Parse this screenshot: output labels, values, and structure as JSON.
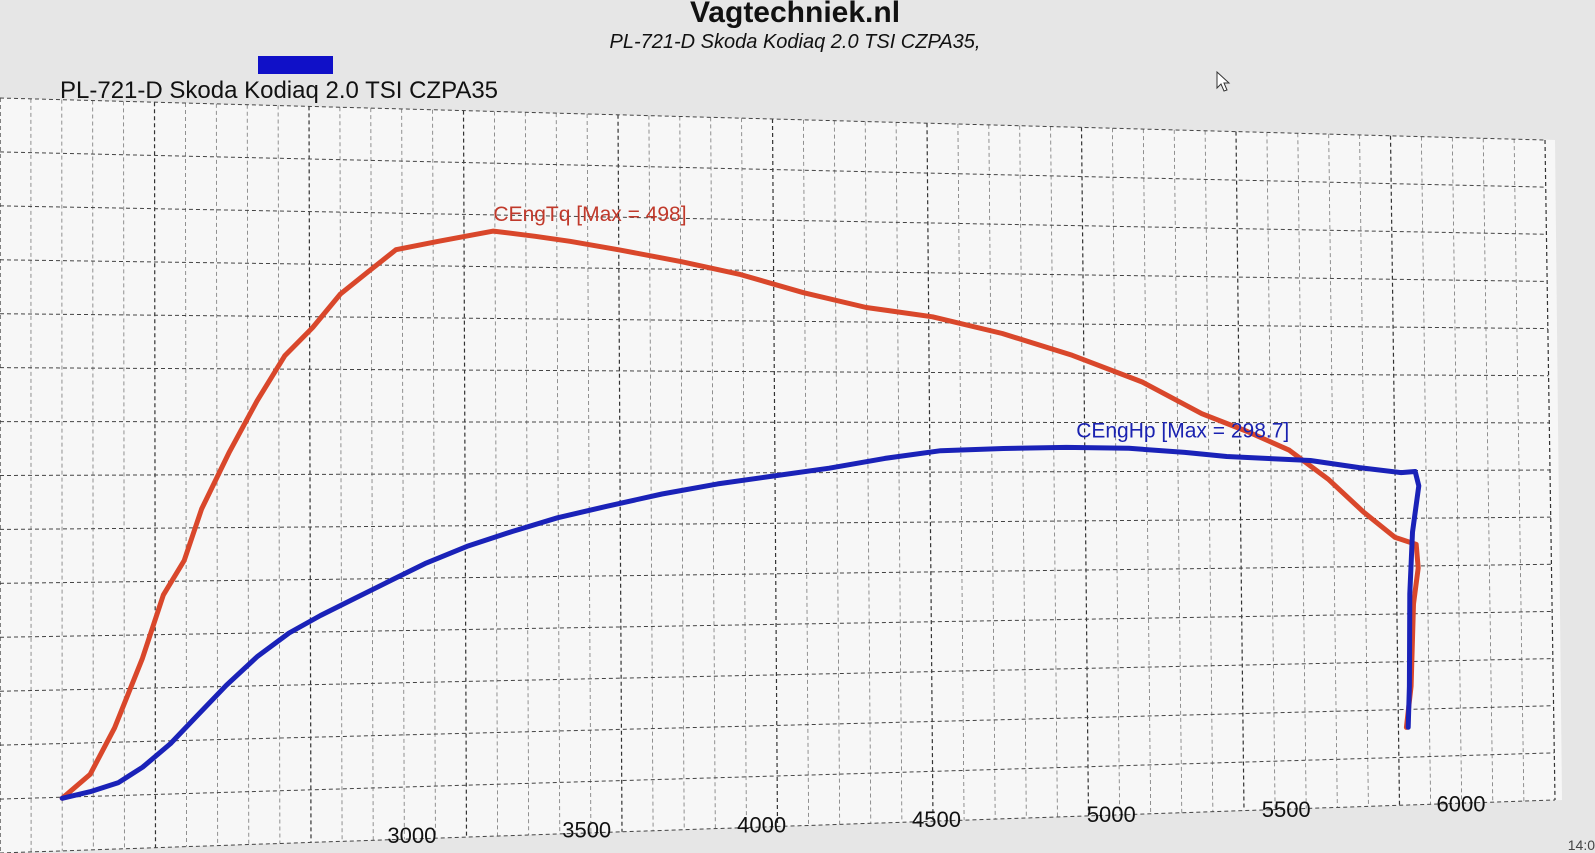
{
  "header": {
    "site_title": "Vagtechniek.nl",
    "subtitle": "PL-721-D Skoda Kodiaq 2.0 TSI CZPA35,",
    "legend_label": "PL-721-D Skoda Kodiaq 2.0 TSI CZPA35",
    "legend_color": "#1010c8",
    "clock": "14:0"
  },
  "chart_data": {
    "type": "line",
    "x_axis": {
      "ticks": [
        3000,
        3500,
        4000,
        4500,
        5000,
        5500,
        6000
      ],
      "tick_labels": [
        "3000",
        "3500",
        "4000",
        "4500",
        "5000",
        "5500",
        "6000"
      ],
      "range": [
        2000,
        6200
      ]
    },
    "y_axis": {
      "range": [
        0,
        560
      ]
    },
    "grid": true,
    "series": [
      {
        "name": "CEngTq",
        "annotation": "CEngTq [Max = 498]",
        "max": 498,
        "color": "#d9472b",
        "points": [
          [
            2000,
            0
          ],
          [
            2080,
            20
          ],
          [
            2150,
            60
          ],
          [
            2230,
            120
          ],
          [
            2290,
            175
          ],
          [
            2350,
            205
          ],
          [
            2400,
            250
          ],
          [
            2480,
            300
          ],
          [
            2560,
            345
          ],
          [
            2640,
            385
          ],
          [
            2720,
            410
          ],
          [
            2800,
            440
          ],
          [
            2880,
            460
          ],
          [
            2960,
            480
          ],
          [
            3080,
            488
          ],
          [
            3240,
            498
          ],
          [
            3360,
            494
          ],
          [
            3460,
            490
          ],
          [
            3600,
            483
          ],
          [
            3780,
            473
          ],
          [
            3950,
            462
          ],
          [
            4130,
            446
          ],
          [
            4310,
            433
          ],
          [
            4500,
            425
          ],
          [
            4700,
            410
          ],
          [
            4900,
            390
          ],
          [
            5100,
            365
          ],
          [
            5270,
            335
          ],
          [
            5400,
            318
          ],
          [
            5520,
            300
          ],
          [
            5630,
            272
          ],
          [
            5730,
            240
          ],
          [
            5820,
            215
          ],
          [
            5880,
            208
          ],
          [
            5885,
            185
          ],
          [
            5870,
            150
          ],
          [
            5860,
            70
          ],
          [
            5845,
            30
          ]
        ]
      },
      {
        "name": "CEngHp",
        "annotation": "CEngHp [Max = 298.7]",
        "max": 298.7,
        "color": "#1a22b8",
        "points": [
          [
            2000,
            0
          ],
          [
            2080,
            5
          ],
          [
            2160,
            12
          ],
          [
            2230,
            25
          ],
          [
            2310,
            45
          ],
          [
            2390,
            70
          ],
          [
            2470,
            95
          ],
          [
            2560,
            120
          ],
          [
            2650,
            140
          ],
          [
            2740,
            155
          ],
          [
            2840,
            170
          ],
          [
            2940,
            185
          ],
          [
            3040,
            200
          ],
          [
            3160,
            215
          ],
          [
            3290,
            228
          ],
          [
            3420,
            240
          ],
          [
            3560,
            250
          ],
          [
            3720,
            261
          ],
          [
            3880,
            270
          ],
          [
            4040,
            277
          ],
          [
            4200,
            284
          ],
          [
            4360,
            293
          ],
          [
            4520,
            300
          ],
          [
            4700,
            302
          ],
          [
            4880,
            303
          ],
          [
            5060,
            302
          ],
          [
            5220,
            298
          ],
          [
            5340,
            294
          ],
          [
            5460,
            292
          ],
          [
            5580,
            290
          ],
          [
            5720,
            283
          ],
          [
            5840,
            278
          ],
          [
            5880,
            279
          ],
          [
            5890,
            265
          ],
          [
            5870,
            220
          ],
          [
            5860,
            160
          ],
          [
            5855,
            70
          ],
          [
            5850,
            30
          ]
        ]
      }
    ]
  }
}
